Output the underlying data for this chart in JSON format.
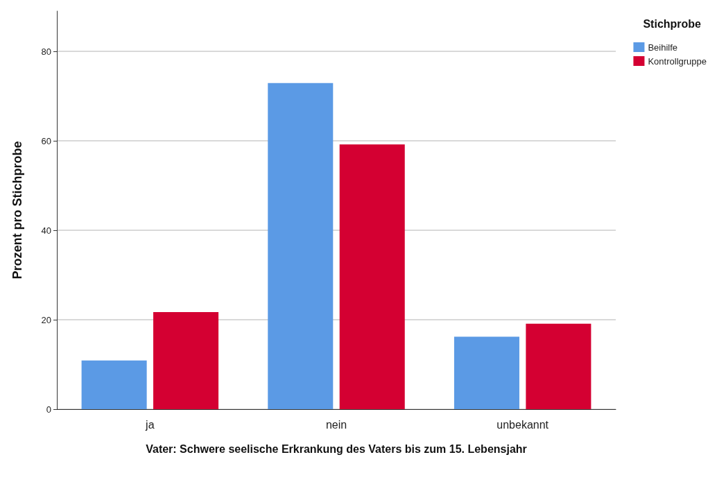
{
  "chart_data": {
    "type": "bar",
    "xlabel": "Vater: Schwere seelische Erkrankung des Vaters bis zum 15. Lebensjahr",
    "ylabel": "Prozent pro Stichprobe",
    "legend_title": "Stichprobe",
    "categories": [
      "ja",
      "nein",
      "unbekannt"
    ],
    "series": [
      {
        "name": "Beihilfe",
        "color": "#5b9ae5",
        "values": [
          10.9,
          72.9,
          16.2
        ]
      },
      {
        "name": "Kontrollgruppe",
        "color": "#d40032",
        "values": [
          21.7,
          59.2,
          19.1
        ]
      }
    ],
    "ylim": [
      0,
      89
    ],
    "yticks": [
      0,
      20,
      40,
      60,
      80
    ],
    "grid": "y",
    "legend": "top right"
  }
}
